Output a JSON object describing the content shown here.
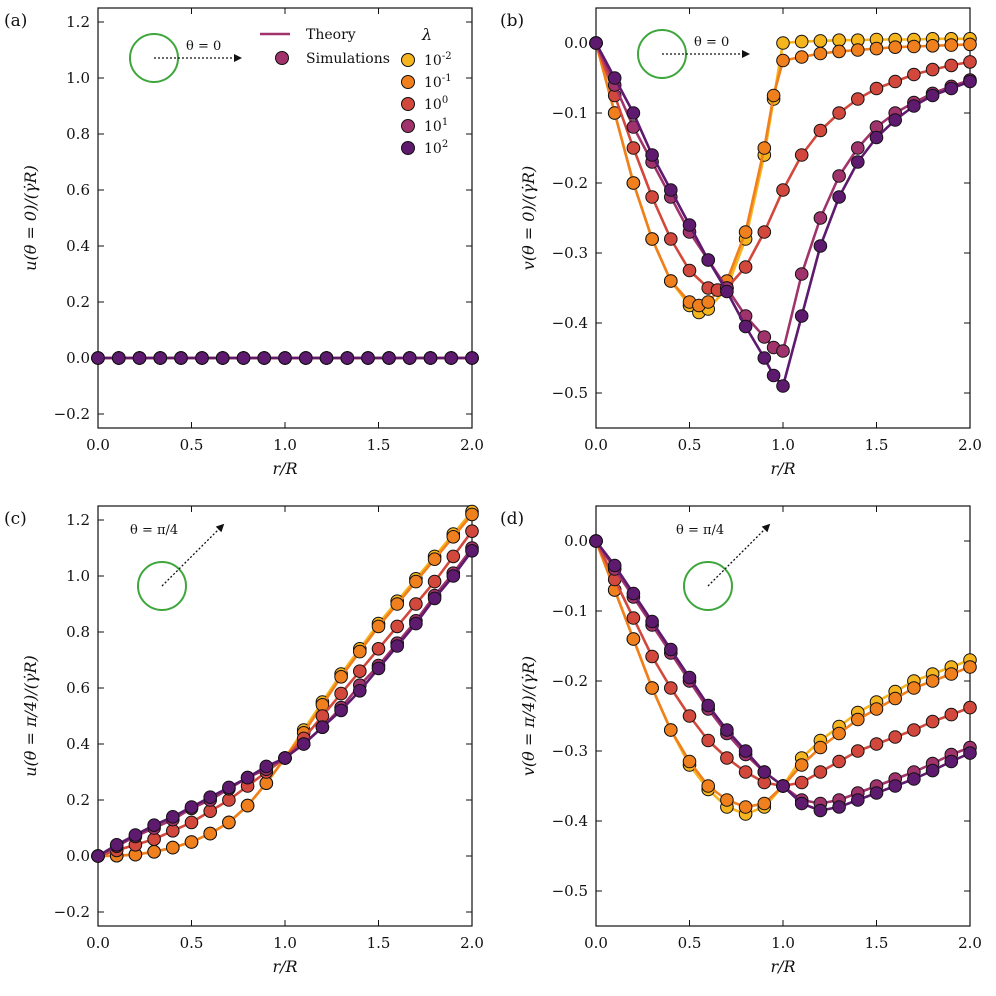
{
  "figure": {
    "legend": {
      "theory_label": "Theory",
      "simulations_label": "Simulations",
      "lambda_title": "λ",
      "lambda_entries": [
        {
          "base": "10",
          "exp": "-2"
        },
        {
          "base": "10",
          "exp": "-1"
        },
        {
          "base": "10",
          "exp": "0"
        },
        {
          "base": "10",
          "exp": "1"
        },
        {
          "base": "10",
          "exp": "2"
        }
      ]
    },
    "colors": {
      "lambda": [
        "#f5b51e",
        "#f07f1d",
        "#d2483c",
        "#a0336b",
        "#5e1a6e"
      ],
      "theory_line": "#a0336b",
      "circle": "#3ea63c",
      "axes": "#111111"
    }
  },
  "chart_data": [
    {
      "panel": "(a)",
      "type": "line",
      "xlabel": "r/R",
      "ylabel": "u(θ = 0)/(γ̇R)",
      "xlim": [
        0,
        2
      ],
      "ylim": [
        -0.25,
        1.25
      ],
      "xticks": [
        0,
        0.5,
        1,
        1.5,
        2
      ],
      "xtick_labels": [
        "0.0",
        "0.5",
        "1.0",
        "1.5",
        "2.0"
      ],
      "yticks": [
        -0.2,
        0,
        0.2,
        0.4,
        0.6,
        0.8,
        1.0,
        1.2
      ],
      "ytick_labels": [
        "−0.2",
        "0.0",
        "0.2",
        "0.4",
        "0.6",
        "0.8",
        "1.0",
        "1.2"
      ],
      "annotation": "θ = 0",
      "inset_direction_deg": 0,
      "x": [
        0,
        0.111,
        0.222,
        0.333,
        0.444,
        0.556,
        0.667,
        0.778,
        0.889,
        1.0,
        1.111,
        1.222,
        1.333,
        1.444,
        1.556,
        1.667,
        1.778,
        1.889,
        2.0
      ],
      "series": [
        {
          "name": "10^-2",
          "values": [
            0,
            0,
            0,
            0,
            0,
            0,
            0,
            0,
            0,
            0,
            0,
            0,
            0,
            0,
            0,
            0,
            0,
            0,
            0
          ]
        },
        {
          "name": "10^-1",
          "values": [
            0,
            0,
            0,
            0,
            0,
            0,
            0,
            0,
            0,
            0,
            0,
            0,
            0,
            0,
            0,
            0,
            0,
            0,
            0
          ]
        },
        {
          "name": "10^0",
          "values": [
            0,
            0,
            0,
            0,
            0,
            0,
            0,
            0,
            0,
            0,
            0,
            0,
            0,
            0,
            0,
            0,
            0,
            0,
            0
          ]
        },
        {
          "name": "10^1",
          "values": [
            0,
            0,
            0,
            0,
            0,
            0,
            0,
            0,
            0,
            0,
            0,
            0,
            0,
            0,
            0,
            0,
            0,
            0,
            0
          ]
        },
        {
          "name": "10^2",
          "values": [
            0,
            0,
            0,
            0,
            0,
            0,
            0,
            0,
            0,
            0,
            0,
            0,
            0,
            0,
            0,
            0,
            0,
            0,
            0
          ]
        }
      ]
    },
    {
      "panel": "(b)",
      "type": "line",
      "xlabel": "r/R",
      "ylabel": "v(θ = 0)/(γ̇R)",
      "xlim": [
        0,
        2
      ],
      "ylim": [
        -0.55,
        0.05
      ],
      "xticks": [
        0,
        0.5,
        1,
        1.5,
        2
      ],
      "xtick_labels": [
        "0.0",
        "0.5",
        "1.0",
        "1.5",
        "2.0"
      ],
      "yticks": [
        -0.5,
        -0.4,
        -0.3,
        -0.2,
        -0.1,
        0
      ],
      "ytick_labels": [
        "−0.5",
        "−0.4",
        "−0.3",
        "−0.2",
        "−0.1",
        "0.0"
      ],
      "annotation": "θ = 0",
      "inset_direction_deg": 0,
      "series": [
        {
          "name": "10^-2",
          "x": [
            0,
            0.1,
            0.2,
            0.3,
            0.4,
            0.5,
            0.55,
            0.6,
            0.7,
            0.8,
            0.9,
            0.95,
            1.0,
            1.1,
            1.2,
            1.3,
            1.4,
            1.5,
            1.6,
            1.7,
            1.8,
            1.9,
            2.0
          ],
          "values": [
            0,
            -0.1,
            -0.2,
            -0.28,
            -0.34,
            -0.375,
            -0.385,
            -0.38,
            -0.35,
            -0.28,
            -0.16,
            -0.08,
            0,
            0.002,
            0.003,
            0.004,
            0.004,
            0.005,
            0.005,
            0.005,
            0.006,
            0.006,
            0.006
          ]
        },
        {
          "name": "10^-1",
          "x": [
            0,
            0.1,
            0.2,
            0.3,
            0.4,
            0.5,
            0.55,
            0.6,
            0.7,
            0.8,
            0.9,
            0.95,
            1.0,
            1.1,
            1.2,
            1.3,
            1.4,
            1.5,
            1.6,
            1.7,
            1.8,
            1.9,
            2.0
          ],
          "values": [
            0,
            -0.1,
            -0.2,
            -0.28,
            -0.34,
            -0.37,
            -0.375,
            -0.37,
            -0.34,
            -0.27,
            -0.15,
            -0.075,
            -0.025,
            -0.02,
            -0.015,
            -0.012,
            -0.01,
            -0.008,
            -0.006,
            -0.005,
            -0.004,
            -0.003,
            -0.002
          ]
        },
        {
          "name": "10^0",
          "x": [
            0,
            0.1,
            0.2,
            0.3,
            0.4,
            0.5,
            0.6,
            0.65,
            0.7,
            0.8,
            0.9,
            1.0,
            1.1,
            1.2,
            1.3,
            1.4,
            1.5,
            1.6,
            1.7,
            1.8,
            1.9,
            2.0
          ],
          "values": [
            0,
            -0.075,
            -0.15,
            -0.22,
            -0.28,
            -0.325,
            -0.35,
            -0.353,
            -0.35,
            -0.32,
            -0.27,
            -0.21,
            -0.16,
            -0.125,
            -0.1,
            -0.08,
            -0.065,
            -0.055,
            -0.045,
            -0.038,
            -0.032,
            -0.027
          ]
        },
        {
          "name": "10^1",
          "x": [
            0,
            0.1,
            0.2,
            0.3,
            0.4,
            0.5,
            0.6,
            0.7,
            0.8,
            0.9,
            0.95,
            1.0,
            1.1,
            1.2,
            1.3,
            1.4,
            1.5,
            1.6,
            1.7,
            1.8,
            1.9,
            2.0
          ],
          "values": [
            0,
            -0.06,
            -0.12,
            -0.17,
            -0.22,
            -0.27,
            -0.31,
            -0.35,
            -0.39,
            -0.42,
            -0.435,
            -0.44,
            -0.33,
            -0.25,
            -0.19,
            -0.15,
            -0.12,
            -0.1,
            -0.085,
            -0.072,
            -0.062,
            -0.053
          ]
        },
        {
          "name": "10^2",
          "x": [
            0,
            0.1,
            0.2,
            0.3,
            0.4,
            0.5,
            0.6,
            0.7,
            0.8,
            0.9,
            0.95,
            1.0,
            1.1,
            1.2,
            1.3,
            1.4,
            1.5,
            1.6,
            1.7,
            1.8,
            1.9,
            2.0
          ],
          "values": [
            0,
            -0.05,
            -0.1,
            -0.16,
            -0.21,
            -0.26,
            -0.31,
            -0.355,
            -0.405,
            -0.45,
            -0.475,
            -0.49,
            -0.39,
            -0.29,
            -0.22,
            -0.17,
            -0.135,
            -0.11,
            -0.09,
            -0.075,
            -0.065,
            -0.055
          ]
        }
      ]
    },
    {
      "panel": "(c)",
      "type": "line",
      "xlabel": "r/R",
      "ylabel": "u(θ = π/4)/(γ̇R)",
      "xlim": [
        0,
        2
      ],
      "ylim": [
        -0.25,
        1.25
      ],
      "xticks": [
        0,
        0.5,
        1,
        1.5,
        2
      ],
      "xtick_labels": [
        "0.0",
        "0.5",
        "1.0",
        "1.5",
        "2.0"
      ],
      "yticks": [
        -0.2,
        0,
        0.2,
        0.4,
        0.6,
        0.8,
        1.0,
        1.2
      ],
      "ytick_labels": [
        "−0.2",
        "0.0",
        "0.2",
        "0.4",
        "0.6",
        "0.8",
        "1.0",
        "1.2"
      ],
      "annotation": "θ = π/4",
      "inset_direction_deg": 45,
      "x": [
        0,
        0.1,
        0.2,
        0.3,
        0.4,
        0.5,
        0.6,
        0.7,
        0.8,
        0.9,
        1.0,
        1.1,
        1.2,
        1.3,
        1.4,
        1.5,
        1.6,
        1.7,
        1.8,
        1.9,
        2.0
      ],
      "series": [
        {
          "name": "10^-2",
          "values": [
            0,
            0.001,
            0.005,
            0.015,
            0.03,
            0.05,
            0.08,
            0.12,
            0.18,
            0.26,
            0.35,
            0.45,
            0.55,
            0.65,
            0.74,
            0.83,
            0.91,
            0.99,
            1.07,
            1.15,
            1.23
          ]
        },
        {
          "name": "10^-1",
          "values": [
            0,
            0.001,
            0.005,
            0.015,
            0.03,
            0.05,
            0.08,
            0.12,
            0.18,
            0.26,
            0.35,
            0.44,
            0.54,
            0.64,
            0.73,
            0.82,
            0.9,
            0.98,
            1.06,
            1.14,
            1.22
          ]
        },
        {
          "name": "10^0",
          "values": [
            0,
            0.02,
            0.04,
            0.06,
            0.09,
            0.12,
            0.16,
            0.2,
            0.25,
            0.3,
            0.35,
            0.42,
            0.5,
            0.58,
            0.66,
            0.74,
            0.82,
            0.9,
            0.98,
            1.07,
            1.16
          ]
        },
        {
          "name": "10^1",
          "values": [
            0,
            0.035,
            0.07,
            0.1,
            0.13,
            0.17,
            0.2,
            0.24,
            0.28,
            0.31,
            0.35,
            0.4,
            0.46,
            0.53,
            0.61,
            0.68,
            0.76,
            0.84,
            0.93,
            1.01,
            1.1
          ]
        },
        {
          "name": "10^2",
          "values": [
            0,
            0.04,
            0.075,
            0.11,
            0.14,
            0.175,
            0.21,
            0.245,
            0.28,
            0.32,
            0.35,
            0.4,
            0.46,
            0.52,
            0.59,
            0.67,
            0.75,
            0.83,
            0.92,
            1.0,
            1.09
          ]
        }
      ]
    },
    {
      "panel": "(d)",
      "type": "line",
      "xlabel": "r/R",
      "ylabel": "v(θ = π/4)/(γ̇R)",
      "xlim": [
        0,
        2
      ],
      "ylim": [
        -0.55,
        0.05
      ],
      "xticks": [
        0,
        0.5,
        1,
        1.5,
        2
      ],
      "xtick_labels": [
        "0.0",
        "0.5",
        "1.0",
        "1.5",
        "2.0"
      ],
      "yticks": [
        -0.5,
        -0.4,
        -0.3,
        -0.2,
        -0.1,
        0
      ],
      "ytick_labels": [
        "−0.5",
        "−0.4",
        "−0.3",
        "−0.2",
        "−0.1",
        "0.0"
      ],
      "annotation": "θ = π/4",
      "inset_direction_deg": 45,
      "x": [
        0,
        0.1,
        0.2,
        0.3,
        0.4,
        0.5,
        0.6,
        0.7,
        0.8,
        0.9,
        1.0,
        1.1,
        1.2,
        1.3,
        1.4,
        1.5,
        1.6,
        1.7,
        1.8,
        1.9,
        2.0
      ],
      "series": [
        {
          "name": "10^-2",
          "values": [
            0,
            -0.07,
            -0.14,
            -0.21,
            -0.27,
            -0.32,
            -0.355,
            -0.38,
            -0.39,
            -0.38,
            -0.35,
            -0.31,
            -0.285,
            -0.265,
            -0.245,
            -0.23,
            -0.215,
            -0.2,
            -0.19,
            -0.18,
            -0.17
          ]
        },
        {
          "name": "10^-1",
          "values": [
            0,
            -0.07,
            -0.14,
            -0.21,
            -0.27,
            -0.315,
            -0.35,
            -0.37,
            -0.38,
            -0.375,
            -0.35,
            -0.32,
            -0.295,
            -0.275,
            -0.255,
            -0.24,
            -0.225,
            -0.21,
            -0.2,
            -0.19,
            -0.18
          ]
        },
        {
          "name": "10^0",
          "values": [
            0,
            -0.055,
            -0.11,
            -0.165,
            -0.21,
            -0.25,
            -0.285,
            -0.31,
            -0.33,
            -0.345,
            -0.35,
            -0.345,
            -0.33,
            -0.315,
            -0.3,
            -0.29,
            -0.28,
            -0.27,
            -0.258,
            -0.248,
            -0.238
          ]
        },
        {
          "name": "10^1",
          "values": [
            0,
            -0.04,
            -0.08,
            -0.12,
            -0.16,
            -0.2,
            -0.24,
            -0.275,
            -0.305,
            -0.33,
            -0.35,
            -0.37,
            -0.375,
            -0.37,
            -0.36,
            -0.35,
            -0.34,
            -0.33,
            -0.318,
            -0.305,
            -0.295
          ]
        },
        {
          "name": "10^2",
          "values": [
            0,
            -0.035,
            -0.075,
            -0.115,
            -0.155,
            -0.195,
            -0.235,
            -0.27,
            -0.3,
            -0.33,
            -0.35,
            -0.375,
            -0.385,
            -0.38,
            -0.37,
            -0.36,
            -0.35,
            -0.34,
            -0.328,
            -0.315,
            -0.303
          ]
        }
      ]
    }
  ]
}
